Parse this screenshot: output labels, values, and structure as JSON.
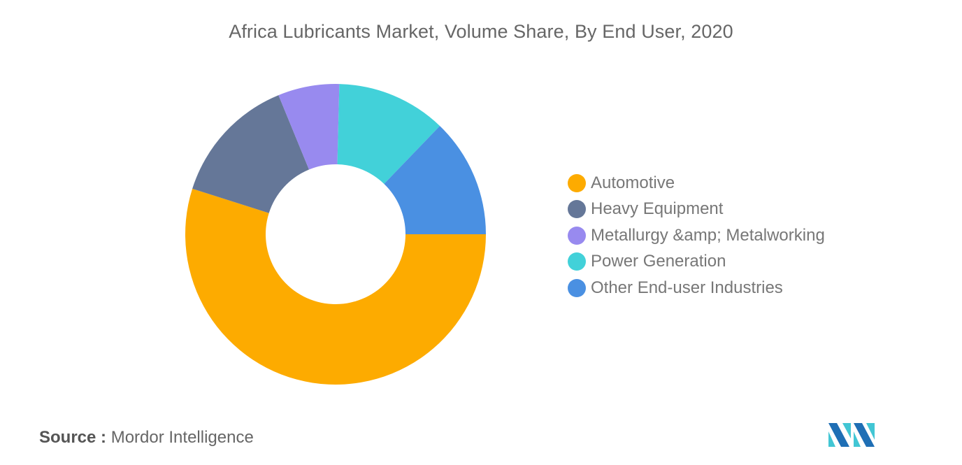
{
  "title": "Africa Lubricants Market, Volume Share, By End User, 2020",
  "source": {
    "label": "Source :",
    "value": "Mordor Intelligence"
  },
  "chart_data": {
    "type": "pie",
    "variant": "donut",
    "title": "Africa Lubricants Market, Volume Share, By End User, 2020",
    "categories": [
      "Automotive",
      "Heavy Equipment",
      "Metallurgy &amp; Metalworking",
      "Power Generation",
      "Other End-user Industries"
    ],
    "values": [
      54.9,
      13.9,
      6.6,
      11.8,
      12.8
    ],
    "colors": [
      "#FDAB00",
      "#657798",
      "#988AEF",
      "#42D1D9",
      "#4A90E2"
    ],
    "start_angle_deg": 0,
    "direction": "clockwise",
    "legend_position": "right",
    "data_labels": false
  },
  "legend": [
    {
      "label": "Automotive",
      "color": "#FDAB00"
    },
    {
      "label": "Heavy Equipment",
      "color": "#657798"
    },
    {
      "label": "Metallurgy &amp; Metalworking",
      "color": "#988AEF"
    },
    {
      "label": "Power Generation",
      "color": "#42D1D9"
    },
    {
      "label": "Other End-user Industries",
      "color": "#4A90E2"
    }
  ]
}
